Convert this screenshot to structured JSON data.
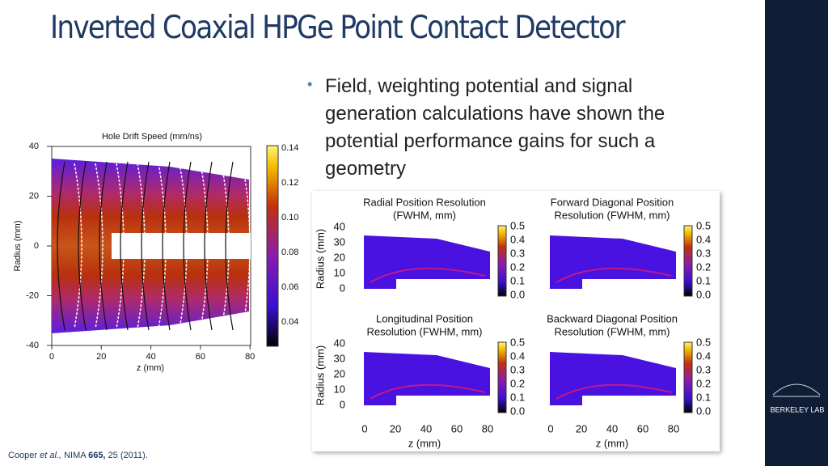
{
  "title": "Inverted Coaxial HPGe Point Contact Detector",
  "bullet": "Field, weighting potential and signal generation calculations have shown the potential performance gains for such a geometry",
  "figure_left": {
    "title": "Hole Drift Speed (mm/ns)",
    "x_label": "z (mm)",
    "y_label": "Radius (mm)",
    "x_ticks": [
      "0",
      "20",
      "40",
      "60",
      "80"
    ],
    "y_ticks": [
      "40",
      "20",
      "0",
      "-20",
      "-40"
    ],
    "colorbar_ticks": [
      "0.14",
      "0.12",
      "0.10",
      "0.08",
      "0.06",
      "0.04"
    ]
  },
  "figure_right": {
    "panels": [
      {
        "title": [
          "Radial Position Resolution",
          "(FWHM, mm)"
        ]
      },
      {
        "title": [
          "Forward Diagonal Position",
          "Resolution (FWHM, mm)"
        ]
      },
      {
        "title": [
          "Longitudinal Position",
          "Resolution (FWHM, mm)"
        ]
      },
      {
        "title": [
          "Backward Diagonal Position",
          "Resolution (FWHM, mm)"
        ]
      }
    ],
    "x_label": "z (mm)",
    "y_label": "Radius (mm)",
    "x_ticks": [
      "0",
      "20",
      "40",
      "60",
      "80"
    ],
    "y_ticks": [
      "40",
      "30",
      "20",
      "10",
      "0"
    ],
    "colorbar_ticks": [
      "0.5",
      "0.4",
      "0.3",
      "0.2",
      "0.1",
      "0.0"
    ]
  },
  "citation": {
    "author": "Cooper",
    "etal": "et al.,",
    "journal": "NIMA",
    "volume": "665,",
    "rest": "25 (2011)."
  },
  "logo": "BERKELEY LAB"
}
